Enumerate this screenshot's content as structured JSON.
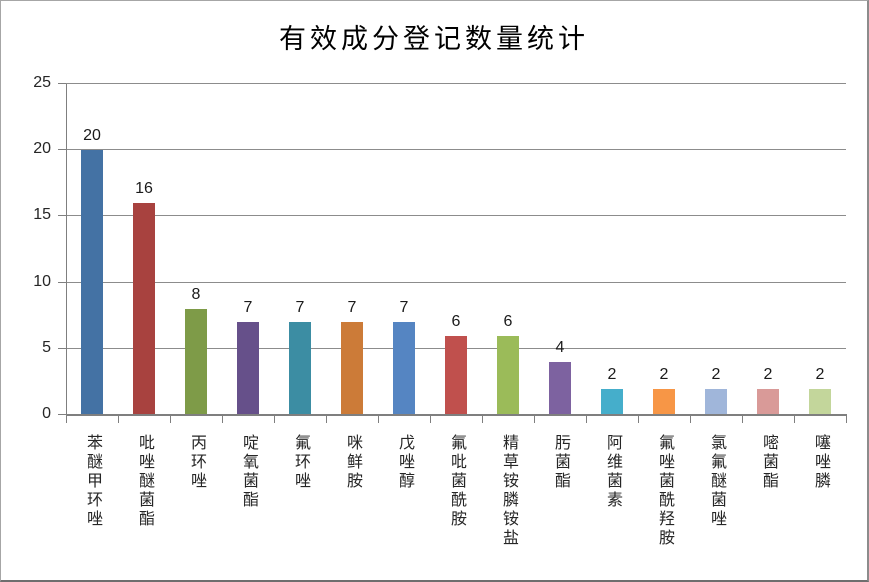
{
  "chart_data": {
    "type": "bar",
    "title": "有效成分登记数量统计",
    "categories": [
      "苯醚甲环唑",
      "吡唑醚菌酯",
      "丙环唑",
      "啶氧菌酯",
      "氟环唑",
      "咪鲜胺",
      "戊唑醇",
      "氟吡菌酰胺",
      "精草铵膦铵盐",
      "肟菌酯",
      "阿维菌素",
      "氟唑菌酰羟胺",
      "氯氟醚菌唑",
      "嘧菌酯",
      "噻唑膦"
    ],
    "values": [
      20,
      16,
      8,
      7,
      7,
      7,
      7,
      6,
      6,
      4,
      2,
      2,
      2,
      2,
      2
    ],
    "bar_colors": [
      "#4472A4",
      "#A8423F",
      "#7E9B48",
      "#66508A",
      "#3C8DA3",
      "#CC7B38",
      "#5585C2",
      "#C0504D",
      "#9BBB59",
      "#7D62A0",
      "#45AECB",
      "#F79646",
      "#A0B6DA",
      "#D99A98",
      "#C3D69B"
    ],
    "xlabel": "",
    "ylabel": "",
    "y_ticks": [
      0,
      5,
      10,
      15,
      20,
      25
    ],
    "ylim": [
      0,
      25
    ],
    "grid": true,
    "legend": "none",
    "data_labels": true,
    "colors": {
      "grid": "#8c8c8c",
      "axis": "#7f7f7f",
      "text": "#262626",
      "frame_border": "#8c8c8c",
      "background": "#ffffff"
    }
  }
}
